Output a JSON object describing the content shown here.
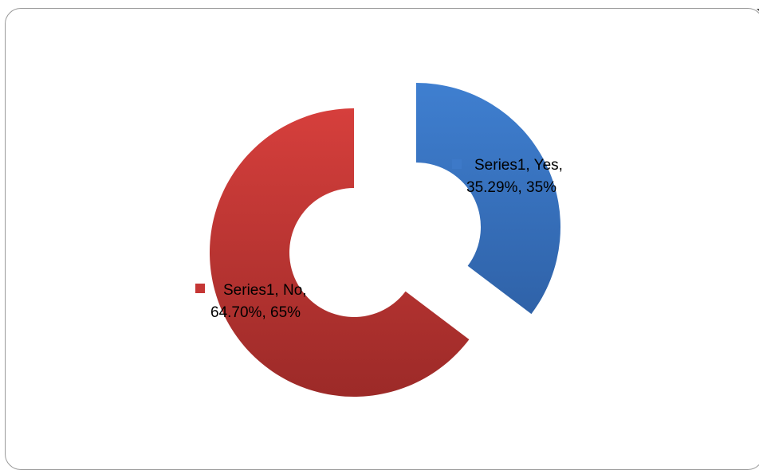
{
  "chart_data": {
    "type": "pie",
    "variant": "exploded-donut",
    "categories": [
      "Yes",
      "No"
    ],
    "series": [
      {
        "name": "Series1",
        "values": [
          35.29,
          64.7
        ]
      }
    ],
    "data_labels": [
      {
        "line1": "Series1, Yes,",
        "line2": "35.29%, 35%"
      },
      {
        "line1": "Series1, No,",
        "line2": "64.70%, 65%"
      }
    ],
    "colors": [
      "#3d79c8",
      "#c53634"
    ],
    "legend": "none",
    "start_angle_deg": 0
  }
}
